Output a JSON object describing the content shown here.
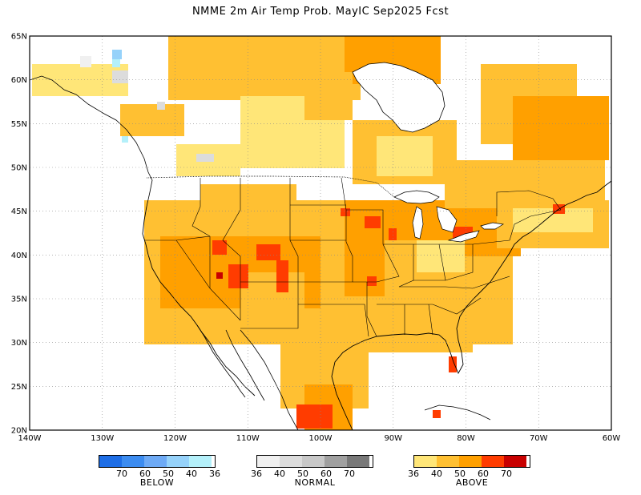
{
  "title": "NMME 2m Air Temp Prob. MayIC  Sep2025 Fcst",
  "map": {
    "lon_range": [
      -140,
      -60
    ],
    "lat_range": [
      20,
      65
    ],
    "lon_ticks": [
      "140W",
      "130W",
      "120W",
      "110W",
      "100W",
      "90W",
      "80W",
      "70W",
      "60W"
    ],
    "lat_ticks": [
      "65N",
      "60N",
      "55N",
      "50N",
      "45N",
      "40N",
      "35N",
      "30N",
      "25N",
      "20N"
    ],
    "dominant_category": "ABOVE"
  },
  "legend": {
    "below": {
      "label": "BELOW",
      "ticks": [
        "70",
        "60",
        "50",
        "40",
        "36"
      ],
      "colors": [
        "#1e6ee6",
        "#3c8cf0",
        "#6eaaf5",
        "#96d2fa",
        "#b4f0fa"
      ]
    },
    "normal": {
      "label": "NORMAL",
      "ticks": [
        "36",
        "40",
        "50",
        "60",
        "70"
      ],
      "colors": [
        "#f0f0f0",
        "#dcdcdc",
        "#c8c8c8",
        "#a0a0a0",
        "#787878"
      ]
    },
    "above": {
      "label": "ABOVE",
      "ticks": [
        "36",
        "40",
        "50",
        "60",
        "70"
      ],
      "colors": [
        "#ffe678",
        "#ffc032",
        "#ffa000",
        "#ff3c00",
        "#c80000"
      ]
    }
  }
}
